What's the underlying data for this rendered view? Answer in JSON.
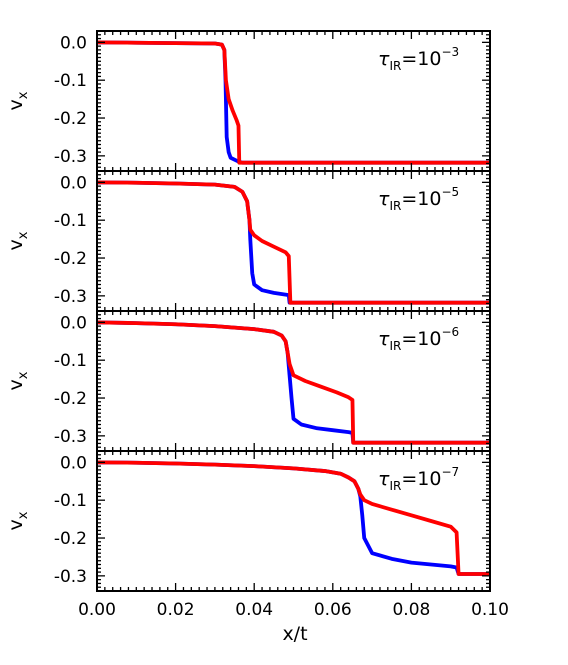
{
  "chart_data": {
    "type": "line",
    "xlabel": "x/t",
    "xlim": [
      0.0,
      0.1
    ],
    "xticks": [
      "0.00",
      "0.02",
      "0.04",
      "0.06",
      "0.08",
      "0.10"
    ],
    "ylim": [
      -0.34,
      0.03
    ],
    "yticks": [
      "0.0",
      "-0.1",
      "-0.2",
      "-0.3"
    ],
    "series_colors": {
      "blue": "#0000ff",
      "red": "#ff0000"
    },
    "panels": [
      {
        "ylabel": "v",
        "ylabel_sub": "x",
        "annotation": {
          "symbol": "τ",
          "sub": "IR",
          "base": "=10",
          "exp": "−3"
        },
        "series": [
          {
            "color": "blue",
            "x": [
              0.0,
              0.01,
              0.02,
              0.03,
              0.0318,
              0.0324,
              0.0327,
              0.033,
              0.0335,
              0.034,
              0.035,
              0.036,
              0.037,
              0.05,
              0.07,
              0.1
            ],
            "y": [
              0.0,
              -0.001,
              -0.002,
              -0.003,
              -0.006,
              -0.02,
              -0.1,
              -0.25,
              -0.29,
              -0.305,
              -0.31,
              -0.315,
              -0.318,
              -0.318,
              -0.318,
              -0.318
            ]
          },
          {
            "color": "red",
            "x": [
              0.0,
              0.01,
              0.02,
              0.03,
              0.0318,
              0.0324,
              0.0328,
              0.0335,
              0.0345,
              0.0355,
              0.036,
              0.0362,
              0.0366,
              0.05,
              0.07,
              0.1
            ],
            "y": [
              0.0,
              -0.001,
              -0.002,
              -0.003,
              -0.006,
              -0.02,
              -0.1,
              -0.15,
              -0.18,
              -0.205,
              -0.22,
              -0.318,
              -0.318,
              -0.318,
              -0.318,
              -0.318
            ]
          }
        ]
      },
      {
        "ylabel": "v",
        "ylabel_sub": "x",
        "annotation": {
          "symbol": "τ",
          "sub": "IR",
          "base": "=10",
          "exp": "−5"
        },
        "series": [
          {
            "color": "blue",
            "x": [
              0.0,
              0.01,
              0.02,
              0.03,
              0.035,
              0.037,
              0.0382,
              0.0388,
              0.039,
              0.0395,
              0.04,
              0.042,
              0.045,
              0.0488,
              0.049,
              0.06,
              0.08,
              0.1
            ],
            "y": [
              0.0,
              -0.001,
              -0.003,
              -0.006,
              -0.012,
              -0.025,
              -0.05,
              -0.1,
              -0.15,
              -0.24,
              -0.27,
              -0.285,
              -0.292,
              -0.298,
              -0.318,
              -0.318,
              -0.318,
              -0.318
            ]
          },
          {
            "color": "red",
            "x": [
              0.0,
              0.01,
              0.02,
              0.03,
              0.035,
              0.037,
              0.0382,
              0.0388,
              0.039,
              0.04,
              0.042,
              0.045,
              0.048,
              0.0488,
              0.0492,
              0.06,
              0.08,
              0.1
            ],
            "y": [
              0.0,
              -0.001,
              -0.003,
              -0.006,
              -0.012,
              -0.025,
              -0.05,
              -0.1,
              -0.125,
              -0.14,
              -0.155,
              -0.17,
              -0.185,
              -0.195,
              -0.318,
              -0.318,
              -0.318,
              -0.318
            ]
          }
        ]
      },
      {
        "ylabel": "v",
        "ylabel_sub": "x",
        "annotation": {
          "symbol": "τ",
          "sub": "IR",
          "base": "=10",
          "exp": "−6"
        },
        "series": [
          {
            "color": "blue",
            "x": [
              0.0,
              0.01,
              0.02,
              0.03,
              0.04,
              0.045,
              0.047,
              0.048,
              0.0485,
              0.049,
              0.0495,
              0.05,
              0.052,
              0.056,
              0.06,
              0.064,
              0.065,
              0.0652,
              0.08,
              0.1
            ],
            "y": [
              0.0,
              -0.002,
              -0.005,
              -0.01,
              -0.018,
              -0.025,
              -0.035,
              -0.05,
              -0.08,
              -0.14,
              -0.2,
              -0.255,
              -0.27,
              -0.28,
              -0.285,
              -0.29,
              -0.292,
              -0.318,
              -0.318,
              -0.318
            ]
          },
          {
            "color": "red",
            "x": [
              0.0,
              0.01,
              0.02,
              0.03,
              0.04,
              0.045,
              0.047,
              0.048,
              0.0485,
              0.049,
              0.0495,
              0.05,
              0.053,
              0.057,
              0.061,
              0.064,
              0.065,
              0.0652,
              0.08,
              0.1
            ],
            "y": [
              0.0,
              -0.002,
              -0.005,
              -0.01,
              -0.018,
              -0.025,
              -0.035,
              -0.05,
              -0.08,
              -0.11,
              -0.125,
              -0.14,
              -0.155,
              -0.17,
              -0.185,
              -0.198,
              -0.205,
              -0.318,
              -0.318,
              -0.318
            ]
          }
        ]
      },
      {
        "ylabel": "v",
        "ylabel_sub": "x",
        "annotation": {
          "symbol": "τ",
          "sub": "IR",
          "base": "=10",
          "exp": "−7"
        },
        "series": [
          {
            "color": "blue",
            "x": [
              0.0,
              0.01,
              0.02,
              0.03,
              0.04,
              0.05,
              0.058,
              0.062,
              0.064,
              0.0655,
              0.066,
              0.0665,
              0.067,
              0.0675,
              0.068,
              0.07,
              0.075,
              0.08,
              0.085,
              0.09,
              0.0915,
              0.092,
              0.096,
              0.1
            ],
            "y": [
              0.0,
              -0.001,
              -0.003,
              -0.006,
              -0.01,
              -0.016,
              -0.023,
              -0.03,
              -0.04,
              -0.05,
              -0.06,
              -0.07,
              -0.09,
              -0.14,
              -0.2,
              -0.24,
              -0.255,
              -0.265,
              -0.27,
              -0.275,
              -0.278,
              -0.295,
              -0.295,
              -0.295
            ]
          },
          {
            "color": "red",
            "x": [
              0.0,
              0.01,
              0.02,
              0.03,
              0.04,
              0.05,
              0.058,
              0.062,
              0.064,
              0.0655,
              0.066,
              0.0665,
              0.067,
              0.068,
              0.07,
              0.075,
              0.08,
              0.085,
              0.09,
              0.0915,
              0.092,
              0.096,
              0.1
            ],
            "y": [
              0.0,
              -0.001,
              -0.003,
              -0.006,
              -0.01,
              -0.016,
              -0.023,
              -0.03,
              -0.04,
              -0.05,
              -0.06,
              -0.07,
              -0.085,
              -0.1,
              -0.11,
              -0.125,
              -0.14,
              -0.155,
              -0.17,
              -0.185,
              -0.295,
              -0.295,
              -0.295
            ]
          }
        ]
      }
    ]
  }
}
